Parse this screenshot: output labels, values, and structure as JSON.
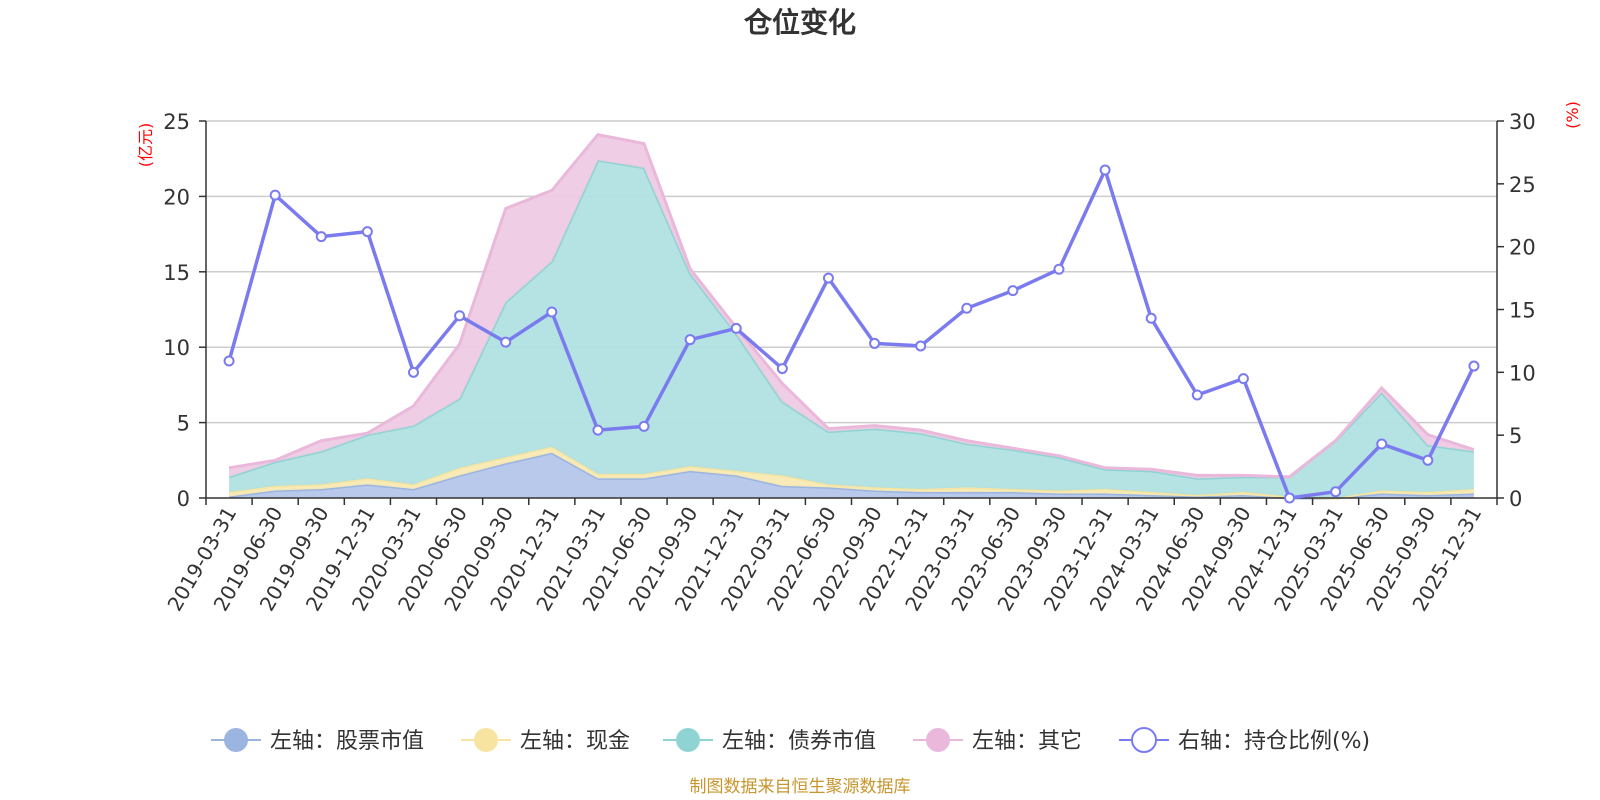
{
  "chart_data": {
    "type": "area",
    "title": "仓位变化",
    "left_axis_unit": "(亿元)",
    "right_axis_unit": "(%)",
    "left_ylim": [
      0,
      25
    ],
    "left_ticks": [
      "0",
      "5",
      "10",
      "15",
      "20",
      "25"
    ],
    "right_ylim": [
      0,
      30
    ],
    "right_ticks": [
      "0",
      "5",
      "10",
      "15",
      "20",
      "25",
      "30"
    ],
    "categories": [
      "2019-03-31",
      "2019-06-30",
      "2019-09-30",
      "2019-12-31",
      "2020-03-31",
      "2020-06-30",
      "2020-09-30",
      "2020-12-31",
      "2021-03-31",
      "2021-06-30",
      "2021-09-30",
      "2021-12-31",
      "2022-03-31",
      "2022-06-30",
      "2022-09-30",
      "2022-12-31",
      "2023-03-31",
      "2023-06-30",
      "2023-09-30",
      "2023-12-31",
      "2024-03-31",
      "2024-06-30",
      "2024-09-30",
      "2024-12-31",
      "2025-03-31",
      "2025-06-30",
      "2025-09-30",
      "2025-12-31"
    ],
    "series": [
      {
        "name": "左轴：股票市值",
        "axis": "left",
        "stacked": true,
        "color": "#9bb4e0",
        "fill": "#b4c6ea",
        "values": [
          0.1,
          0.5,
          0.6,
          0.9,
          0.6,
          1.5,
          2.3,
          3.0,
          1.3,
          1.3,
          1.8,
          1.5,
          0.8,
          0.7,
          0.5,
          0.4,
          0.4,
          0.4,
          0.3,
          0.3,
          0.2,
          0.1,
          0.2,
          0.0,
          0.0,
          0.3,
          0.2,
          0.3
        ]
      },
      {
        "name": "左轴：现金",
        "axis": "left",
        "stacked": true,
        "color": "#f6e4a0",
        "fill": "#f8eab3",
        "values": [
          0.3,
          0.3,
          0.3,
          0.4,
          0.3,
          0.5,
          0.4,
          0.4,
          0.3,
          0.3,
          0.3,
          0.3,
          0.7,
          0.2,
          0.2,
          0.2,
          0.3,
          0.2,
          0.2,
          0.3,
          0.2,
          0.1,
          0.2,
          0.1,
          0.0,
          0.2,
          0.2,
          0.3
        ]
      },
      {
        "name": "左轴：债券市值",
        "axis": "left",
        "stacked": true,
        "color": "#8fd3d3",
        "fill": "#b1e0e0",
        "values": [
          1.0,
          1.6,
          2.2,
          2.9,
          3.9,
          4.6,
          10.3,
          12.3,
          20.8,
          20.3,
          12.8,
          9.1,
          4.9,
          3.5,
          3.9,
          3.7,
          2.9,
          2.6,
          2.2,
          1.3,
          1.4,
          1.1,
          1.0,
          1.3,
          3.8,
          6.5,
          3.1,
          2.5
        ]
      },
      {
        "name": "左轴：其它",
        "axis": "left",
        "stacked": true,
        "color": "#e9b8da",
        "fill": "#eecbe4",
        "values": [
          0.6,
          0.1,
          0.7,
          0.1,
          1.3,
          3.6,
          6.2,
          4.7,
          1.7,
          1.6,
          0.3,
          0.4,
          1.2,
          0.2,
          0.2,
          0.2,
          0.2,
          0.1,
          0.1,
          0.1,
          0.1,
          0.2,
          0.1,
          0.0,
          0.0,
          0.3,
          0.7,
          0.1
        ]
      },
      {
        "name": "右轴：持仓比例(%)",
        "axis": "right",
        "stacked": false,
        "color": "#7b7bf0",
        "fill": "none",
        "values": [
          10.9,
          24.1,
          20.8,
          21.2,
          10.0,
          14.5,
          12.4,
          14.8,
          5.4,
          5.7,
          12.6,
          13.5,
          10.3,
          17.5,
          12.3,
          12.1,
          15.1,
          16.5,
          18.2,
          26.1,
          14.3,
          8.2,
          9.5,
          0.0,
          0.5,
          4.3,
          3.0,
          10.5
        ]
      }
    ],
    "legend_position": "bottom-center",
    "grid": true
  },
  "source_note": "制图数据来自恒生聚源数据库",
  "colors": {
    "axis_unit": "#ff0000",
    "source": "#c8962d",
    "axis": "#333333",
    "grid": "#cccccc"
  }
}
